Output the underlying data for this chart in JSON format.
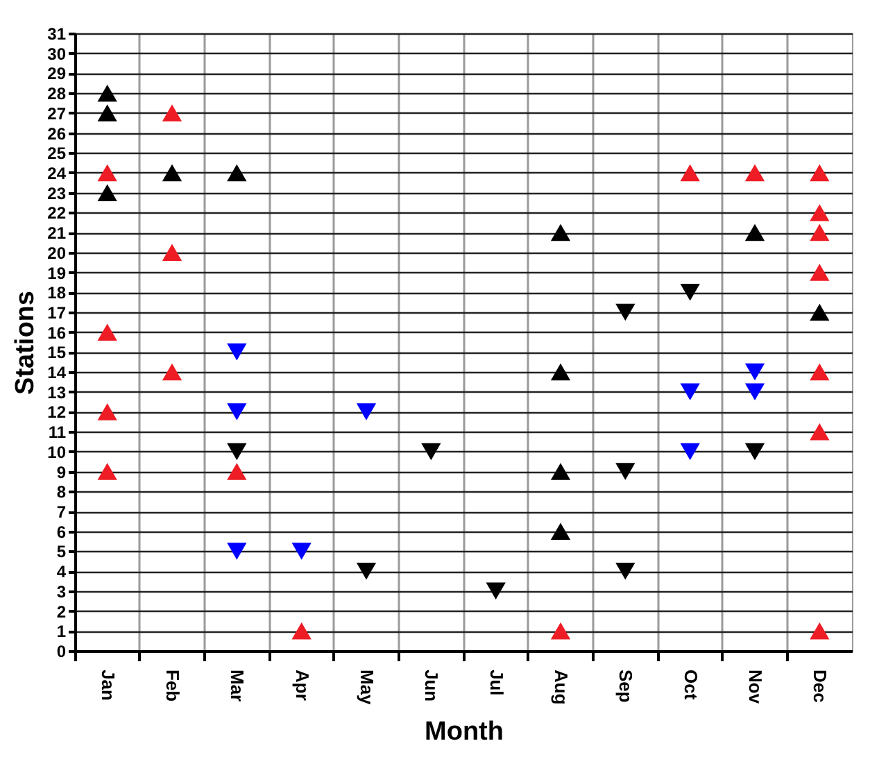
{
  "chart_data": {
    "type": "scatter",
    "xlabel": "Month",
    "ylabel": "Stations",
    "categories": [
      "Jan",
      "Feb",
      "Mar",
      "Apr",
      "May",
      "Jun",
      "Jul",
      "Aug",
      "Sep",
      "Oct",
      "Nov",
      "Dec"
    ],
    "series": [
      {
        "color": "#ee1c25",
        "marker": "triangle",
        "x": [
          "Jan",
          "Jan",
          "Jan",
          "Jan",
          "Feb",
          "Feb",
          "Feb",
          "Mar",
          "Apr",
          "Aug",
          "Oct",
          "Nov",
          "Dec",
          "Dec",
          "Dec",
          "Dec",
          "Dec",
          "Dec",
          "Dec"
        ],
        "values": [
          24,
          16,
          12,
          9,
          27,
          20,
          14,
          9,
          1,
          1,
          24,
          24,
          24,
          22,
          21,
          19,
          14,
          11,
          1
        ]
      },
      {
        "color": "#000000",
        "marker": "triangle",
        "x": [
          "Jan",
          "Jan",
          "Jan",
          "Feb",
          "Mar",
          "Aug",
          "Aug",
          "Aug",
          "Aug",
          "Nov",
          "Dec"
        ],
        "values": [
          28,
          27,
          23,
          24,
          24,
          21,
          14,
          9,
          6,
          21,
          17
        ]
      },
      {
        "color": "#000000",
        "marker": "triangle-down",
        "x": [
          "Mar",
          "May",
          "Jun",
          "Jul",
          "Sep",
          "Sep",
          "Sep",
          "Oct",
          "Nov"
        ],
        "values": [
          10,
          4,
          10,
          3,
          17,
          9,
          4,
          18,
          10
        ]
      },
      {
        "color": "#0000ff",
        "marker": "triangle-down",
        "x": [
          "Mar",
          "Mar",
          "Mar",
          "Apr",
          "May",
          "Oct",
          "Oct",
          "Nov",
          "Nov"
        ],
        "values": [
          15,
          12,
          5,
          5,
          12,
          13,
          10,
          14,
          13
        ]
      }
    ],
    "ylim": [
      0,
      31
    ],
    "yticks": [
      0,
      1,
      2,
      3,
      4,
      5,
      6,
      7,
      8,
      9,
      10,
      11,
      12,
      13,
      14,
      15,
      16,
      17,
      18,
      19,
      20,
      21,
      22,
      23,
      24,
      25,
      26,
      27,
      28,
      29,
      30,
      31
    ],
    "grid": true
  }
}
